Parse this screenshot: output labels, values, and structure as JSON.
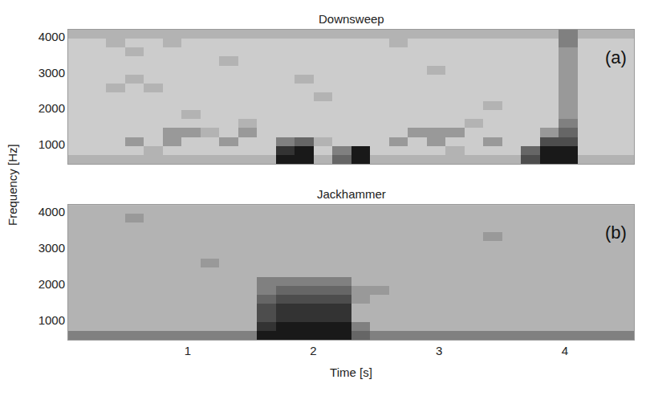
{
  "chart_data": [
    {
      "type": "heatmap",
      "title": "Downsweep",
      "ylabel": "Frequency [Hz]",
      "annotations": [
        "(a)"
      ],
      "tick_labels": "y",
      "grid": false,
      "colors": [
        "#ffffff",
        "#000000"
      ],
      "zlim": [
        0,
        10
      ],
      "xlim": [
        0.05,
        4.55
      ],
      "ylim": [
        450,
        4200
      ],
      "yticks": [
        1000,
        2000,
        3000,
        4000
      ],
      "x": [
        0.125,
        0.275,
        0.425,
        0.575,
        0.725,
        0.875,
        1.025,
        1.175,
        1.325,
        1.475,
        1.625,
        1.775,
        1.925,
        2.075,
        2.225,
        2.375,
        2.525,
        2.675,
        2.825,
        2.975,
        3.125,
        3.275,
        3.425,
        3.575,
        3.725,
        3.875,
        4.025,
        4.175,
        4.325,
        4.475
      ],
      "y": [
        575,
        825,
        1075,
        1325,
        1575,
        1825,
        2075,
        2325,
        2575,
        2825,
        3075,
        3325,
        3575,
        3825,
        4075
      ],
      "z": [
        [
          3,
          3,
          3,
          3,
          3,
          3,
          3,
          3,
          3,
          3,
          3,
          9,
          9,
          3,
          6,
          9,
          3,
          3,
          3,
          3,
          3,
          3,
          3,
          3,
          7,
          9,
          9,
          3,
          3,
          3
        ],
        [
          2,
          2,
          2,
          2,
          3,
          2,
          2,
          2,
          2,
          2,
          2,
          8,
          9,
          2,
          5,
          9,
          2,
          2,
          2,
          2,
          3,
          2,
          2,
          2,
          6,
          9,
          9,
          2,
          2,
          2
        ],
        [
          2,
          2,
          2,
          4,
          2,
          4,
          2,
          2,
          4,
          2,
          2,
          5,
          6,
          3,
          2,
          2,
          2,
          4,
          2,
          4,
          2,
          2,
          4,
          2,
          2,
          7,
          7,
          2,
          2,
          2
        ],
        [
          2,
          2,
          2,
          2,
          2,
          4,
          4,
          3,
          2,
          4,
          2,
          2,
          2,
          2,
          2,
          2,
          2,
          2,
          4,
          4,
          4,
          2,
          2,
          2,
          2,
          4,
          6,
          2,
          2,
          2
        ],
        [
          2,
          2,
          2,
          2,
          2,
          2,
          2,
          2,
          2,
          3,
          2,
          2,
          2,
          2,
          2,
          2,
          2,
          2,
          2,
          2,
          2,
          3,
          2,
          2,
          2,
          2,
          5,
          2,
          2,
          2
        ],
        [
          2,
          2,
          2,
          2,
          2,
          2,
          3,
          2,
          2,
          2,
          2,
          2,
          2,
          2,
          2,
          2,
          2,
          2,
          2,
          2,
          2,
          2,
          2,
          2,
          2,
          2,
          4,
          2,
          2,
          2
        ],
        [
          2,
          2,
          2,
          2,
          2,
          2,
          2,
          2,
          2,
          2,
          2,
          2,
          2,
          2,
          2,
          2,
          2,
          2,
          2,
          2,
          2,
          2,
          3,
          2,
          2,
          2,
          4,
          2,
          2,
          2
        ],
        [
          2,
          2,
          2,
          2,
          2,
          2,
          2,
          2,
          2,
          2,
          2,
          2,
          2,
          3,
          2,
          2,
          2,
          2,
          2,
          2,
          2,
          2,
          2,
          2,
          2,
          2,
          4,
          2,
          2,
          2
        ],
        [
          2,
          2,
          3,
          2,
          3,
          2,
          2,
          2,
          2,
          2,
          2,
          2,
          2,
          2,
          2,
          2,
          2,
          2,
          2,
          2,
          2,
          2,
          2,
          2,
          2,
          2,
          4,
          2,
          2,
          2
        ],
        [
          2,
          2,
          2,
          3,
          2,
          2,
          2,
          2,
          2,
          2,
          2,
          2,
          3,
          2,
          2,
          2,
          2,
          2,
          2,
          2,
          2,
          2,
          2,
          2,
          2,
          2,
          4,
          2,
          2,
          2
        ],
        [
          2,
          2,
          2,
          2,
          2,
          2,
          2,
          2,
          2,
          2,
          2,
          2,
          2,
          2,
          2,
          2,
          2,
          2,
          2,
          3,
          2,
          2,
          2,
          2,
          2,
          2,
          4,
          2,
          2,
          2
        ],
        [
          2,
          2,
          2,
          2,
          2,
          2,
          2,
          2,
          3,
          2,
          2,
          2,
          2,
          2,
          2,
          2,
          2,
          2,
          2,
          2,
          2,
          2,
          2,
          2,
          2,
          2,
          4,
          2,
          2,
          2
        ],
        [
          2,
          2,
          2,
          3,
          2,
          2,
          2,
          2,
          2,
          2,
          2,
          2,
          2,
          2,
          2,
          2,
          2,
          2,
          2,
          2,
          2,
          2,
          2,
          2,
          2,
          2,
          4,
          2,
          2,
          2
        ],
        [
          2,
          2,
          3,
          2,
          2,
          3,
          2,
          2,
          2,
          2,
          2,
          2,
          2,
          2,
          2,
          2,
          2,
          3,
          2,
          2,
          2,
          2,
          2,
          2,
          2,
          2,
          5,
          2,
          2,
          2
        ],
        [
          3,
          3,
          3,
          3,
          3,
          3,
          3,
          3,
          3,
          3,
          3,
          3,
          3,
          3,
          3,
          3,
          3,
          3,
          3,
          3,
          3,
          3,
          3,
          3,
          3,
          3,
          5,
          3,
          3,
          3
        ]
      ]
    },
    {
      "type": "heatmap",
      "title": "Jackhammer",
      "xlabel": "Time [s]",
      "annotations": [
        "(b)"
      ],
      "grid": false,
      "colors": [
        "#ffffff",
        "#000000"
      ],
      "zlim": [
        0,
        10
      ],
      "xlim": [
        0.05,
        4.55
      ],
      "ylim": [
        450,
        4200
      ],
      "xticks": [
        1,
        2,
        3,
        4
      ],
      "yticks": [
        1000,
        2000,
        3000,
        4000
      ],
      "x": [
        0.125,
        0.275,
        0.425,
        0.575,
        0.725,
        0.875,
        1.025,
        1.175,
        1.325,
        1.475,
        1.625,
        1.775,
        1.925,
        2.075,
        2.225,
        2.375,
        2.525,
        2.675,
        2.825,
        2.975,
        3.125,
        3.275,
        3.425,
        3.575,
        3.725,
        3.875,
        4.025,
        4.175,
        4.325,
        4.475
      ],
      "y": [
        575,
        825,
        1075,
        1325,
        1575,
        1825,
        2075,
        2325,
        2575,
        2825,
        3075,
        3325,
        3575,
        3825,
        4075
      ],
      "z": [
        [
          5,
          5,
          5,
          5,
          5,
          5,
          5,
          5,
          5,
          5,
          9,
          9,
          9,
          9,
          9,
          6,
          5,
          5,
          5,
          5,
          5,
          5,
          5,
          5,
          5,
          5,
          5,
          5,
          5,
          5
        ],
        [
          3,
          3,
          3,
          3,
          3,
          3,
          3,
          3,
          3,
          3,
          8,
          9,
          9,
          9,
          9,
          5,
          3,
          3,
          3,
          3,
          3,
          3,
          3,
          3,
          3,
          3,
          3,
          3,
          3,
          3
        ],
        [
          3,
          3,
          3,
          3,
          3,
          3,
          3,
          3,
          3,
          3,
          7,
          8,
          8,
          8,
          8,
          3,
          3,
          3,
          3,
          3,
          3,
          3,
          3,
          3,
          3,
          3,
          3,
          3,
          3,
          3
        ],
        [
          3,
          3,
          3,
          3,
          3,
          3,
          3,
          3,
          3,
          3,
          7,
          8,
          8,
          8,
          8,
          3,
          3,
          3,
          3,
          3,
          3,
          3,
          3,
          3,
          3,
          3,
          3,
          3,
          3,
          3
        ],
        [
          3,
          3,
          3,
          3,
          3,
          3,
          3,
          3,
          3,
          3,
          6,
          7,
          7,
          7,
          7,
          4,
          3,
          3,
          3,
          3,
          3,
          3,
          3,
          3,
          3,
          3,
          3,
          3,
          3,
          3
        ],
        [
          3,
          3,
          3,
          3,
          3,
          3,
          3,
          3,
          3,
          3,
          5,
          6,
          6,
          6,
          6,
          4,
          4,
          3,
          3,
          3,
          3,
          3,
          3,
          3,
          3,
          3,
          3,
          3,
          3,
          3
        ],
        [
          3,
          3,
          3,
          3,
          3,
          3,
          3,
          3,
          3,
          3,
          5,
          5,
          5,
          5,
          5,
          3,
          3,
          3,
          3,
          3,
          3,
          3,
          3,
          3,
          3,
          3,
          3,
          3,
          3,
          3
        ],
        [
          3,
          3,
          3,
          3,
          3,
          3,
          3,
          3,
          3,
          3,
          3,
          3,
          3,
          3,
          3,
          3,
          3,
          3,
          3,
          3,
          3,
          3,
          3,
          3,
          3,
          3,
          3,
          3,
          3,
          3
        ],
        [
          3,
          3,
          3,
          3,
          3,
          3,
          3,
          4,
          3,
          3,
          3,
          3,
          3,
          3,
          3,
          3,
          3,
          3,
          3,
          3,
          3,
          3,
          3,
          3,
          3,
          3,
          3,
          3,
          3,
          3
        ],
        [
          3,
          3,
          3,
          3,
          3,
          3,
          3,
          3,
          3,
          3,
          3,
          3,
          3,
          3,
          3,
          3,
          3,
          3,
          3,
          3,
          3,
          3,
          3,
          3,
          3,
          3,
          3,
          3,
          3,
          3
        ],
        [
          3,
          3,
          3,
          3,
          3,
          3,
          3,
          3,
          3,
          3,
          3,
          3,
          3,
          3,
          3,
          3,
          3,
          3,
          3,
          3,
          3,
          3,
          3,
          3,
          3,
          3,
          3,
          3,
          3,
          3
        ],
        [
          3,
          3,
          3,
          3,
          3,
          3,
          3,
          3,
          3,
          3,
          3,
          3,
          3,
          3,
          3,
          3,
          3,
          3,
          3,
          3,
          3,
          3,
          4,
          3,
          3,
          3,
          3,
          3,
          3,
          3
        ],
        [
          3,
          3,
          3,
          3,
          3,
          3,
          3,
          3,
          3,
          3,
          3,
          3,
          3,
          3,
          3,
          3,
          3,
          3,
          3,
          3,
          3,
          3,
          3,
          3,
          3,
          3,
          3,
          3,
          3,
          3
        ],
        [
          3,
          3,
          3,
          4,
          3,
          3,
          3,
          3,
          3,
          3,
          3,
          3,
          3,
          3,
          3,
          3,
          3,
          3,
          3,
          3,
          3,
          3,
          3,
          3,
          3,
          3,
          3,
          3,
          3,
          3
        ],
        [
          3,
          3,
          3,
          3,
          3,
          3,
          3,
          3,
          3,
          3,
          3,
          3,
          3,
          3,
          3,
          3,
          3,
          3,
          3,
          3,
          3,
          3,
          3,
          3,
          3,
          3,
          3,
          3,
          3,
          3
        ]
      ]
    }
  ]
}
